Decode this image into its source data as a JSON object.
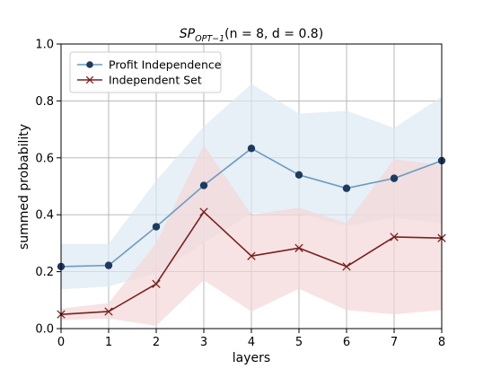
{
  "chart_data": {
    "type": "line",
    "title": {
      "prefix": "SP",
      "subscript": "OPT−1",
      "suffix": "(n = 8, d = 0.8)"
    },
    "xlabel": "layers",
    "ylabel": "summed probability",
    "x": [
      0,
      1,
      2,
      3,
      4,
      5,
      6,
      7,
      8
    ],
    "xlim": [
      0,
      8
    ],
    "ylim": [
      0,
      1.0
    ],
    "x_ticks": [
      0,
      1,
      2,
      3,
      4,
      5,
      6,
      7,
      8
    ],
    "y_ticks": [
      0.0,
      0.2,
      0.4,
      0.6,
      0.8,
      1.0
    ],
    "y_tick_labels": [
      "0.0",
      "0.2",
      "0.4",
      "0.6",
      "0.8",
      "1.0"
    ],
    "grid": true,
    "legend_position": "top-left",
    "series": [
      {
        "name": "Profit Independence",
        "color": "#6a9ac0",
        "band_color": "#dde8f3",
        "marker": "circle",
        "marker_color": "#1f3a5f",
        "values": [
          0.218,
          0.222,
          0.358,
          0.503,
          0.633,
          0.54,
          0.493,
          0.528,
          0.59
        ],
        "lower": [
          0.138,
          0.148,
          0.195,
          0.3,
          0.405,
          0.405,
          0.36,
          0.39,
          0.37
        ],
        "upper": [
          0.298,
          0.298,
          0.52,
          0.71,
          0.86,
          0.755,
          0.765,
          0.705,
          0.815
        ]
      },
      {
        "name": "Independent Set",
        "color": "#7a2020",
        "band_color": "#f3d7d7",
        "marker": "x",
        "marker_color": "#7a2020",
        "values": [
          0.05,
          0.06,
          0.157,
          0.41,
          0.255,
          0.283,
          0.218,
          0.322,
          0.318
        ],
        "lower": [
          0.03,
          0.035,
          0.01,
          0.17,
          0.06,
          0.14,
          0.065,
          0.05,
          0.065
        ],
        "upper": [
          0.07,
          0.09,
          0.3,
          0.645,
          0.4,
          0.425,
          0.37,
          0.595,
          0.575
        ]
      }
    ]
  }
}
